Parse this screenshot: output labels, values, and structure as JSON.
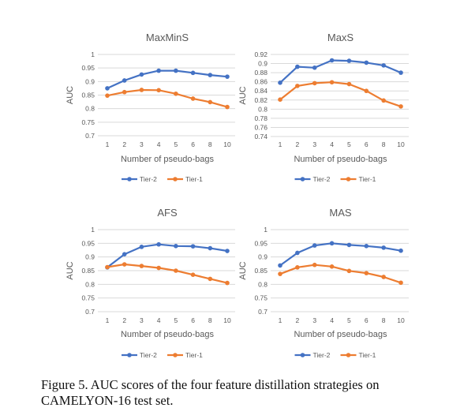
{
  "figure": {
    "caption": "Figure 5.  AUC scores of the four feature distillation strategies on CAMELYON-16 test set.",
    "colors": {
      "Tier-2": "#4472c4",
      "Tier-1": "#ed7d31",
      "grid": "#d9d9d9",
      "text": "#595959"
    }
  },
  "chart_data": [
    {
      "type": "line",
      "title": "MaxMinS",
      "xlabel": "Number of pseudo-bags",
      "ylabel": "AUC",
      "categories": [
        "1",
        "2",
        "3",
        "4",
        "5",
        "6",
        "8",
        "10"
      ],
      "yticks": [
        "0.7",
        "0.75",
        "0.8",
        "0.85",
        "0.9",
        "0.95",
        "1"
      ],
      "ylim": [
        0.7,
        1.0
      ],
      "grid": true,
      "legend": "bottom",
      "series": [
        {
          "name": "Tier-2",
          "color": "#4472c4",
          "values": [
            0.875,
            0.904,
            0.926,
            0.94,
            0.94,
            0.932,
            0.924,
            0.918
          ]
        },
        {
          "name": "Tier-1",
          "color": "#ed7d31",
          "values": [
            0.848,
            0.861,
            0.869,
            0.868,
            0.855,
            0.837,
            0.824,
            0.806
          ]
        }
      ]
    },
    {
      "type": "line",
      "title": "MaxS",
      "xlabel": "Number of pseudo-bags",
      "ylabel": "AUC",
      "categories": [
        "1",
        "2",
        "3",
        "4",
        "5",
        "6",
        "8",
        "10"
      ],
      "yticks": [
        "0.74",
        "0.76",
        "0.78",
        "0.8",
        "0.82",
        "0.84",
        "0.86",
        "0.88",
        "0.9",
        "0.92"
      ],
      "ylim": [
        0.74,
        0.92
      ],
      "grid": true,
      "legend": "bottom",
      "series": [
        {
          "name": "Tier-2",
          "color": "#4472c4",
          "values": [
            0.858,
            0.893,
            0.891,
            0.907,
            0.906,
            0.902,
            0.896,
            0.88
          ]
        },
        {
          "name": "Tier-1",
          "color": "#ed7d31",
          "values": [
            0.821,
            0.851,
            0.857,
            0.859,
            0.855,
            0.84,
            0.819,
            0.806
          ]
        }
      ]
    },
    {
      "type": "line",
      "title": "AFS",
      "xlabel": "Number of pseudo-bags",
      "ylabel": "AUC",
      "categories": [
        "1",
        "2",
        "3",
        "4",
        "5",
        "6",
        "8",
        "10"
      ],
      "yticks": [
        "0.7",
        "0.75",
        "0.8",
        "0.85",
        "0.9",
        "0.95",
        "1"
      ],
      "ylim": [
        0.7,
        1.0
      ],
      "grid": true,
      "legend": "bottom",
      "series": [
        {
          "name": "Tier-2",
          "color": "#4472c4",
          "values": [
            0.862,
            0.91,
            0.937,
            0.946,
            0.94,
            0.939,
            0.932,
            0.922
          ]
        },
        {
          "name": "Tier-1",
          "color": "#ed7d31",
          "values": [
            0.863,
            0.873,
            0.867,
            0.86,
            0.85,
            0.835,
            0.82,
            0.805
          ]
        }
      ]
    },
    {
      "type": "line",
      "title": "MAS",
      "xlabel": "Number of pseudo-bags",
      "ylabel": "AUC",
      "categories": [
        "1",
        "2",
        "3",
        "4",
        "5",
        "6",
        "8",
        "10"
      ],
      "yticks": [
        "0.7",
        "0.75",
        "0.8",
        "0.85",
        "0.9",
        "0.95",
        "1"
      ],
      "ylim": [
        0.7,
        1.0
      ],
      "grid": true,
      "legend": "bottom",
      "series": [
        {
          "name": "Tier-2",
          "color": "#4472c4",
          "values": [
            0.869,
            0.915,
            0.942,
            0.95,
            0.944,
            0.94,
            0.934,
            0.923
          ]
        },
        {
          "name": "Tier-1",
          "color": "#ed7d31",
          "values": [
            0.838,
            0.862,
            0.871,
            0.865,
            0.849,
            0.841,
            0.827,
            0.806
          ]
        }
      ]
    }
  ]
}
